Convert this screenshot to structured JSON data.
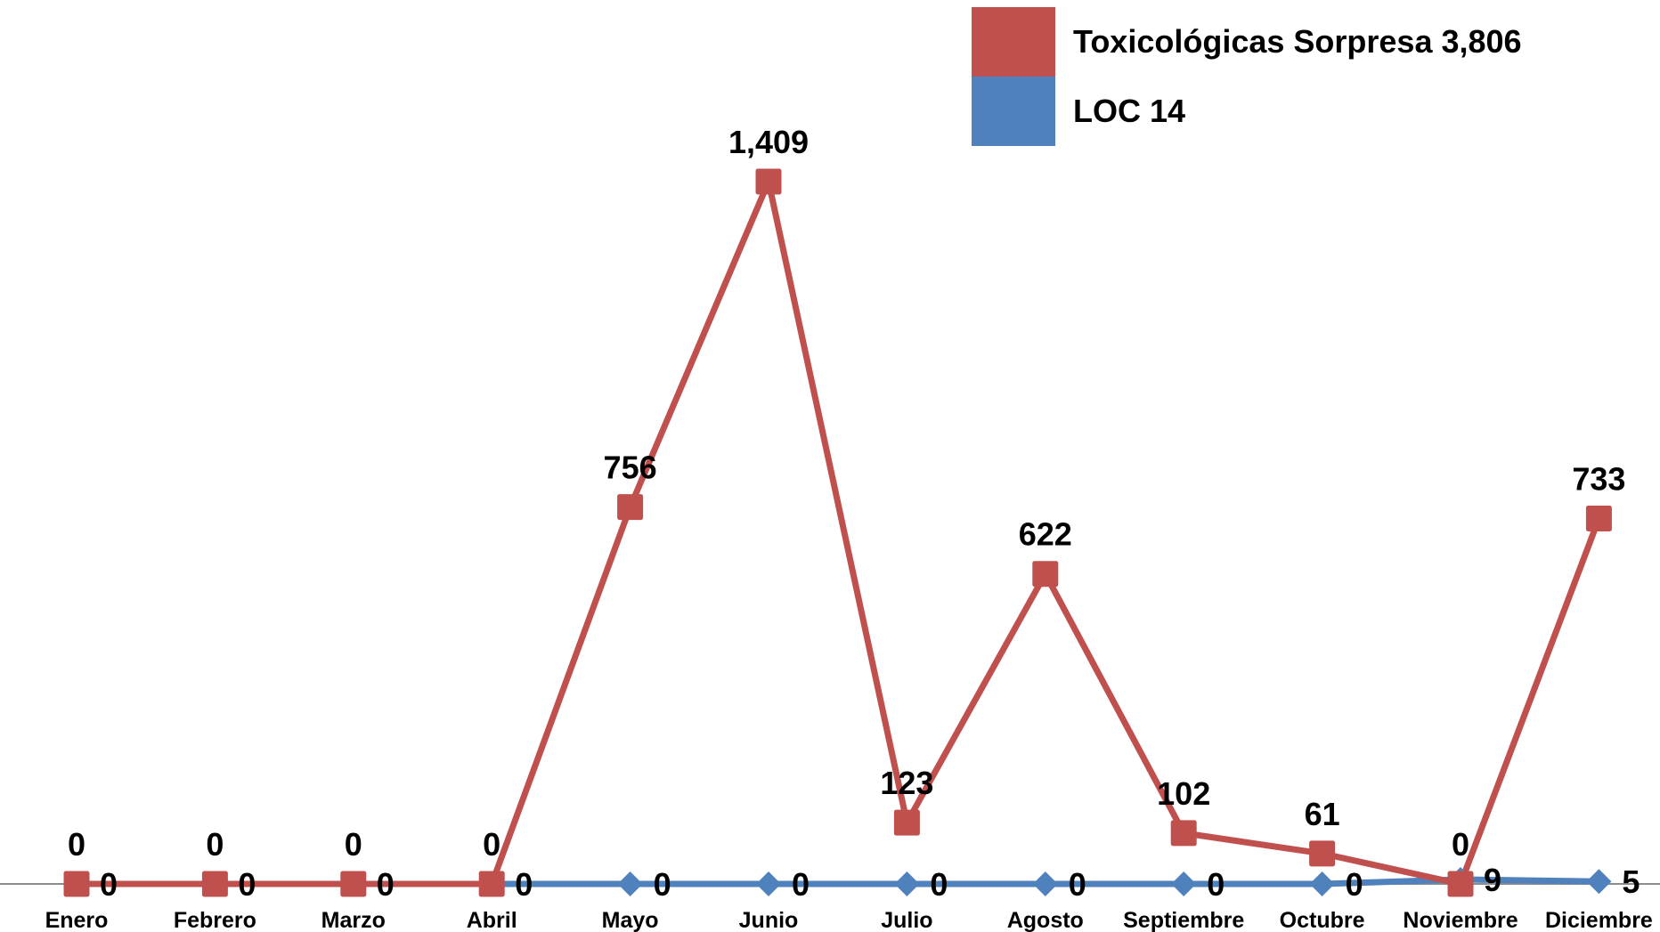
{
  "chart_data": {
    "type": "line",
    "categories": [
      "Enero",
      "Febrero",
      "Marzo",
      "Abril",
      "Mayo",
      "Junio",
      "Julio",
      "Agosto",
      "Septiembre",
      "Octubre",
      "Noviembre",
      "Diciembre"
    ],
    "series": [
      {
        "name": "Toxicológicas Sorpresa 3,806",
        "color": "#C0504D",
        "marker": "square",
        "values": [
          0,
          0,
          0,
          0,
          756,
          1409,
          123,
          622,
          102,
          61,
          0,
          733
        ],
        "labels": [
          "0",
          "0",
          "0",
          "0",
          "756",
          "1,409",
          "123",
          "622",
          "102",
          "61",
          "0",
          "733"
        ]
      },
      {
        "name": "LOC 14",
        "color": "#4F81BD",
        "marker": "diamond",
        "values": [
          0,
          0,
          0,
          0,
          0,
          0,
          0,
          0,
          0,
          0,
          9,
          5
        ],
        "labels": [
          "0",
          "0",
          "0",
          "0",
          "0",
          "0",
          "0",
          "0",
          "0",
          "0",
          "9",
          "5"
        ]
      }
    ],
    "ylim": [
      0,
      1409
    ],
    "grid": false,
    "legend": "top-right",
    "title": "",
    "xlabel": "",
    "ylabel": ""
  }
}
